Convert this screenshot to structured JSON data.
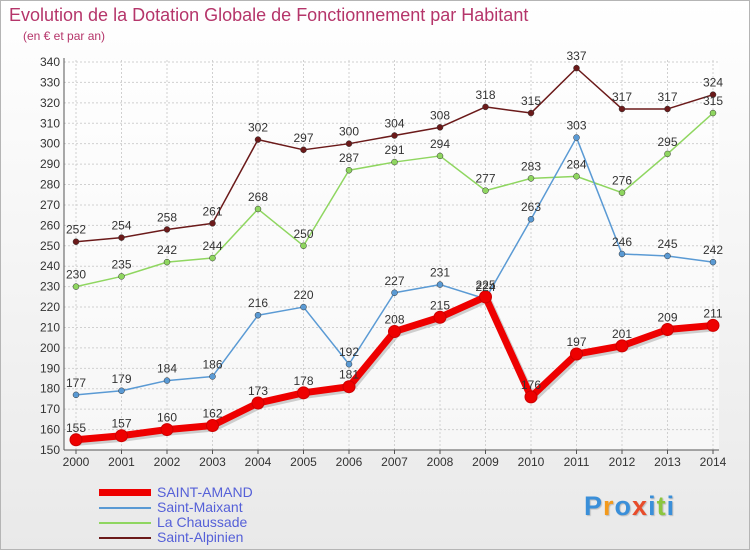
{
  "header": {
    "title": "Evolution de la Dotation Globale de Fonctionnement par Habitant",
    "subtitle": "(en € et par an)"
  },
  "chart_data": {
    "type": "line",
    "title": "Evolution de la Dotation Globale de Fonctionnement par Habitant",
    "subtitle": "(en € et par an)",
    "xlabel": "",
    "ylabel": "",
    "x": [
      2000,
      2001,
      2002,
      2003,
      2004,
      2005,
      2006,
      2007,
      2008,
      2009,
      2010,
      2011,
      2012,
      2013,
      2014
    ],
    "ylim": [
      150,
      340
    ],
    "yticks": [
      150,
      160,
      170,
      180,
      190,
      200,
      210,
      220,
      230,
      240,
      250,
      260,
      270,
      280,
      290,
      300,
      310,
      320,
      330,
      340
    ],
    "grid": true,
    "legend_position": "bottom-left",
    "series": [
      {
        "name": "Saint-Alpinien",
        "color": "#6b1a1a",
        "values": [
          252,
          254,
          258,
          261,
          302,
          297,
          300,
          304,
          308,
          318,
          315,
          337,
          317,
          317,
          324
        ]
      },
      {
        "name": "La Chaussade",
        "color": "#8fd660",
        "values": [
          230,
          235,
          242,
          244,
          268,
          250,
          287,
          291,
          294,
          277,
          283,
          284,
          276,
          295,
          315
        ]
      },
      {
        "name": "Saint-Maixant",
        "color": "#5a9ad4",
        "values": [
          177,
          179,
          184,
          186,
          216,
          220,
          192,
          227,
          231,
          224,
          263,
          303,
          246,
          245,
          242
        ]
      },
      {
        "name": "SAINT-AMAND",
        "color": "#ee0000",
        "values": [
          155,
          157,
          160,
          162,
          173,
          178,
          181,
          208,
          215,
          225,
          176,
          197,
          201,
          209,
          211
        ]
      }
    ]
  },
  "legend": {
    "items": [
      {
        "label": "SAINT-AMAND",
        "color": "#ee0000"
      },
      {
        "label": "Saint-Maixant",
        "color": "#5a9ad4"
      },
      {
        "label": "La Chaussade",
        "color": "#8fd660"
      },
      {
        "label": "Saint-Alpinien",
        "color": "#6b1a1a"
      }
    ]
  },
  "logo": {
    "text": "Proxiti",
    "letters": [
      "P",
      "r",
      "o",
      "x",
      "i",
      "t",
      "i"
    ],
    "colors": [
      "#3a8fd9",
      "#f39a1c",
      "#3a8fd9",
      "#e84c2a",
      "#3a8fd9",
      "#8cc63f",
      "#3a8fd9"
    ]
  }
}
